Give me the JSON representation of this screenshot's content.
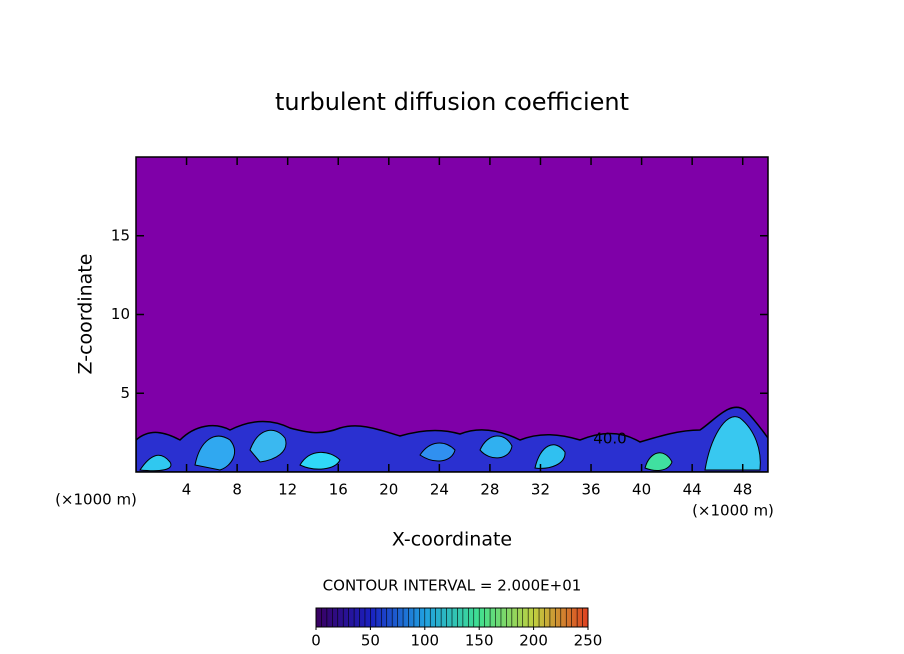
{
  "chart_data": {
    "type": "contour",
    "title": "turbulent diffusion coefficient",
    "x_label": "X-coordinate",
    "y_label": "Z-coordinate",
    "x_unit": "(×1000 m)",
    "xlim": [
      0,
      50
    ],
    "ylim": [
      0,
      20
    ],
    "xticks": [
      4,
      8,
      12,
      16,
      20,
      24,
      28,
      32,
      36,
      40,
      44,
      48
    ],
    "yticks": [
      5,
      10,
      15
    ],
    "background_color": "#7f00a8",
    "contour_label": "40.0",
    "contour_interval": "CONTOUR INTERVAL = 2.000E+01",
    "colorbar": {
      "lim": [
        0,
        250
      ],
      "ticks": [
        0,
        50,
        100,
        150,
        200,
        250
      ],
      "colors": [
        "#3a0060",
        "#1a20c0",
        "#20a0e0",
        "#40e090",
        "#c0d040",
        "#e04020"
      ]
    }
  }
}
